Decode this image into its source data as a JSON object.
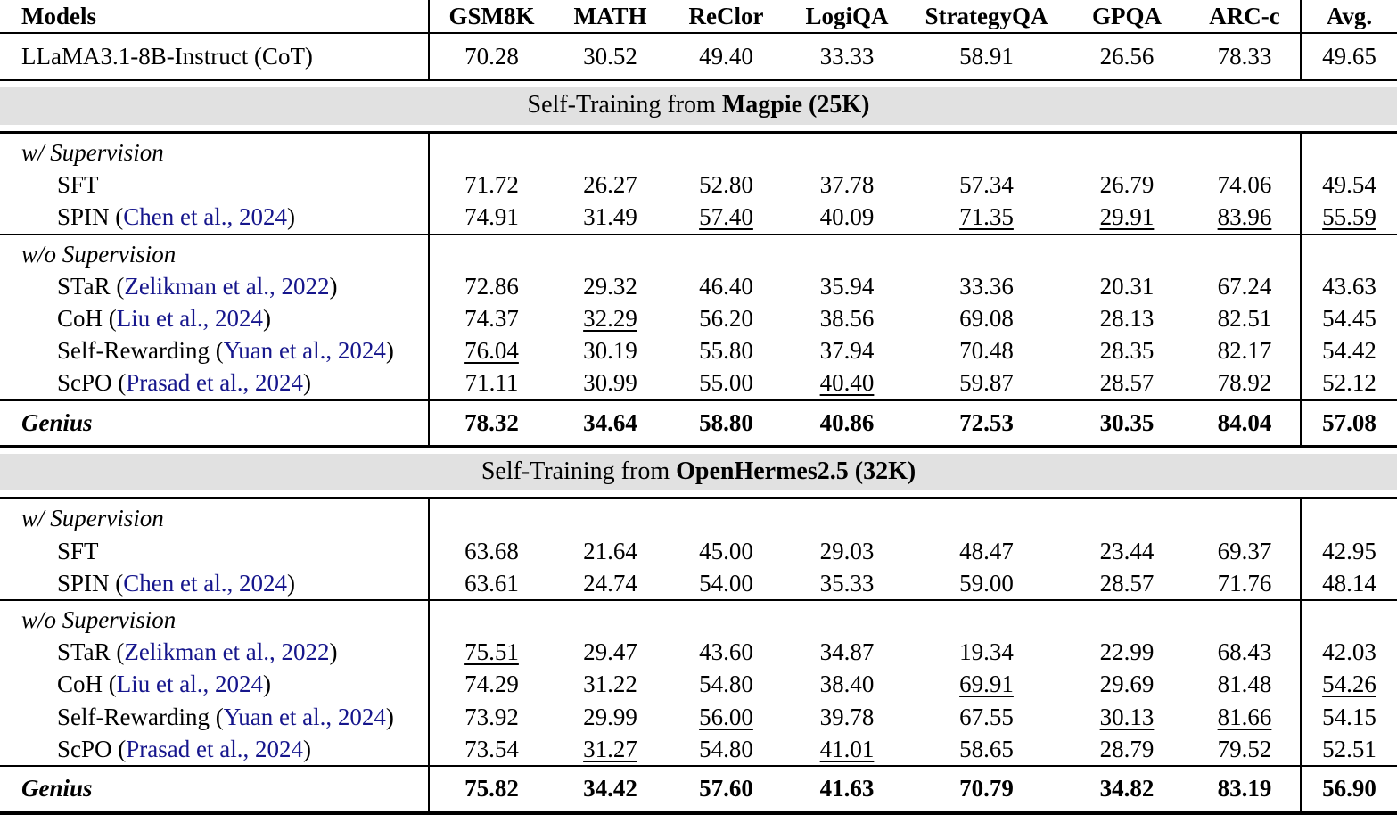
{
  "colors": {
    "band_background": "#e1e1e1",
    "citation_link": "#16168c",
    "rule": "#000000"
  },
  "table": {
    "columns": [
      "Models",
      "GSM8K",
      "MATH",
      "ReClor",
      "LogiQA",
      "StrategyQA",
      "GPQA",
      "ARC-c",
      "Avg."
    ],
    "baseline": {
      "pre": "LLaMA3.1-8B-Instruct (CoT)",
      "cite": "",
      "post": "",
      "values": [
        "70.28",
        "30.52",
        "49.40",
        "33.33",
        "58.91",
        "26.56",
        "78.33",
        "49.65"
      ],
      "underline": []
    },
    "sections": [
      {
        "band": {
          "prefix": "Self-Training from ",
          "bold": "Magpie (25K)"
        },
        "groups": [
          {
            "label": "w/ Supervision",
            "rows": [
              {
                "pre": "SFT",
                "cite": "",
                "post": "",
                "values": [
                  "71.72",
                  "26.27",
                  "52.80",
                  "37.78",
                  "57.34",
                  "26.79",
                  "74.06",
                  "49.54"
                ],
                "underline": []
              },
              {
                "pre": "SPIN (",
                "cite": "Chen et al., 2024",
                "post": ")",
                "values": [
                  "74.91",
                  "31.49",
                  "57.40",
                  "40.09",
                  "71.35",
                  "29.91",
                  "83.96",
                  "55.59"
                ],
                "underline": [
                  2,
                  4,
                  5,
                  6,
                  7
                ]
              }
            ]
          },
          {
            "label": "w/o Supervision",
            "rows": [
              {
                "pre": "STaR (",
                "cite": "Zelikman et al., 2022",
                "post": ")",
                "values": [
                  "72.86",
                  "29.32",
                  "46.40",
                  "35.94",
                  "33.36",
                  "20.31",
                  "67.24",
                  "43.63"
                ],
                "underline": []
              },
              {
                "pre": "CoH (",
                "cite": "Liu et al., 2024",
                "post": ")",
                "values": [
                  "74.37",
                  "32.29",
                  "56.20",
                  "38.56",
                  "69.08",
                  "28.13",
                  "82.51",
                  "54.45"
                ],
                "underline": [
                  1
                ]
              },
              {
                "pre": "Self-Rewarding (",
                "cite": "Yuan et al., 2024",
                "post": ")",
                "values": [
                  "76.04",
                  "30.19",
                  "55.80",
                  "37.94",
                  "70.48",
                  "28.35",
                  "82.17",
                  "54.42"
                ],
                "underline": [
                  0
                ]
              },
              {
                "pre": "ScPO (",
                "cite": "Prasad et al., 2024",
                "post": ")",
                "values": [
                  "71.11",
                  "30.99",
                  "55.00",
                  "40.40",
                  "59.87",
                  "28.57",
                  "78.92",
                  "52.12"
                ],
                "underline": [
                  3
                ]
              }
            ]
          }
        ],
        "genius": {
          "name": "Genius",
          "values": [
            "78.32",
            "34.64",
            "58.80",
            "40.86",
            "72.53",
            "30.35",
            "84.04",
            "57.08"
          ]
        }
      },
      {
        "band": {
          "prefix": "Self-Training from ",
          "bold": "OpenHermes2.5 (32K)"
        },
        "groups": [
          {
            "label": "w/ Supervision",
            "rows": [
              {
                "pre": "SFT",
                "cite": "",
                "post": "",
                "values": [
                  "63.68",
                  "21.64",
                  "45.00",
                  "29.03",
                  "48.47",
                  "23.44",
                  "69.37",
                  "42.95"
                ],
                "underline": []
              },
              {
                "pre": "SPIN (",
                "cite": "Chen et al., 2024",
                "post": ")",
                "values": [
                  "63.61",
                  "24.74",
                  "54.00",
                  "35.33",
                  "59.00",
                  "28.57",
                  "71.76",
                  "48.14"
                ],
                "underline": []
              }
            ]
          },
          {
            "label": "w/o Supervision",
            "rows": [
              {
                "pre": "STaR (",
                "cite": "Zelikman et al., 2022",
                "post": ")",
                "values": [
                  "75.51",
                  "29.47",
                  "43.60",
                  "34.87",
                  "19.34",
                  "22.99",
                  "68.43",
                  "42.03"
                ],
                "underline": [
                  0
                ]
              },
              {
                "pre": "CoH (",
                "cite": "Liu et al., 2024",
                "post": ")",
                "values": [
                  "74.29",
                  "31.22",
                  "54.80",
                  "38.40",
                  "69.91",
                  "29.69",
                  "81.48",
                  "54.26"
                ],
                "underline": [
                  4,
                  7
                ]
              },
              {
                "pre": "Self-Rewarding (",
                "cite": "Yuan et al., 2024",
                "post": ")",
                "values": [
                  "73.92",
                  "29.99",
                  "56.00",
                  "39.78",
                  "67.55",
                  "30.13",
                  "81.66",
                  "54.15"
                ],
                "underline": [
                  2,
                  5,
                  6
                ]
              },
              {
                "pre": "ScPO (",
                "cite": "Prasad et al., 2024",
                "post": ")",
                "values": [
                  "73.54",
                  "31.27",
                  "54.80",
                  "41.01",
                  "58.65",
                  "28.79",
                  "79.52",
                  "52.51"
                ],
                "underline": [
                  1,
                  3
                ]
              }
            ]
          }
        ],
        "genius": {
          "name": "Genius",
          "values": [
            "75.82",
            "34.42",
            "57.60",
            "41.63",
            "70.79",
            "34.82",
            "83.19",
            "56.90"
          ]
        }
      }
    ]
  }
}
